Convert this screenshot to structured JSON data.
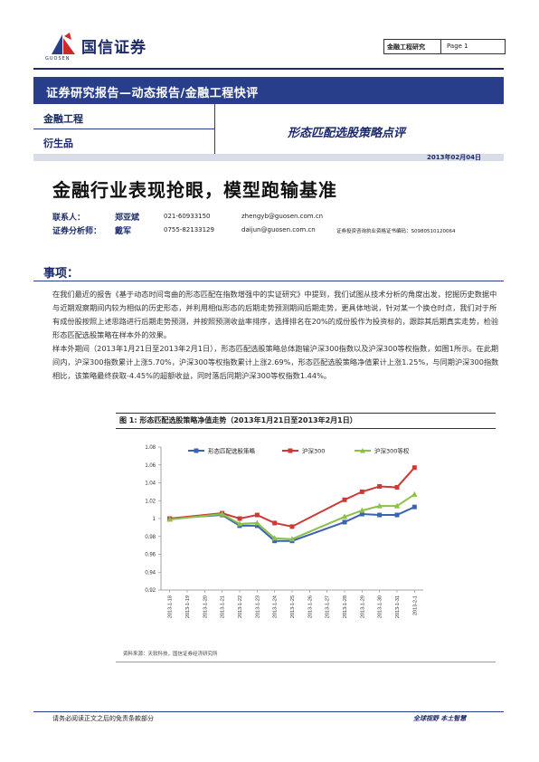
{
  "header": {
    "logo_cn": "国信证券",
    "logo_en": "GUOSEN",
    "category": "金融工程研究",
    "page_label": "Page 1"
  },
  "banner": {
    "title": "证券研究报告—动态报告/金融工程快评"
  },
  "tags": [
    "金融工程",
    "衍生品"
  ],
  "subtitle": "形态匹配选股策略点评",
  "date": "2013年02月04日",
  "main_title": "金融行业表现抢眼，模型跑输基准",
  "contacts": [
    {
      "role": "联系人：",
      "name": "郑亚斌",
      "phone": "021-60933150",
      "email": "zhengyb@guosen.com.cn",
      "cert": ""
    },
    {
      "role": "证券分析师：",
      "name": "戴军",
      "phone": "0755-82133129",
      "email": "daijun@guosen.com.cn",
      "cert": "证券投资咨询执业资格证书编码：S0980510120064"
    }
  ],
  "section_title": "事项：",
  "paragraphs": [
    "在我们最近的报告《基于动态时间弯曲的形态匹配在指数增强中的实证研究》中提到，我们试图从技术分析的角度出发，挖掘历史数据中与近期观察期间内较为相似的历史形态，并利用相似形态的后期走势预测期间后期走势，更具体地说，针对某一个换仓时点，我们对于所有成份股按照上述思路进行后期走势预测，并按照预测收益率排序，选择排名在20%的成份股作为投资标的，跟踪其后期真实走势，检验形态匹配选股策略在样本外的效果。",
    "样本外期间（2013年1月21日至2013年2月1日），形态匹配选股策略总体跑输沪深300指数以及沪深300等权指数，如图1所示。在此期间内，沪深300指数累计上涨5.70%，沪深300等权指数累计上涨2.69%，形态匹配选股策略净值累计上涨1.25%，与同期沪深300指数相比，该策略最终获取-4.45%的超额收益，同时落后同期沪深300等权指数1.44%。"
  ],
  "figure": {
    "title_prefix": "图 1:",
    "title": "形态匹配选股策略净值走势（2013年1月21日至2013年2月1日）",
    "source": "资料来源：天软科技，国信证券经济研究所"
  },
  "footer": {
    "left": "请务必阅读正文之后的免责条款部分",
    "right": "全球视野  本土智慧"
  },
  "chart_data": {
    "type": "line",
    "categories": [
      "2013-1-18",
      "2013-1-19",
      "2013-1-20",
      "2013-1-21",
      "2013-1-22",
      "2013-1-23",
      "2013-1-24",
      "2013-1-25",
      "2013-1-26",
      "2013-1-27",
      "2013-1-28",
      "2013-1-29",
      "2013-1-30",
      "2013-1-31",
      "2013-2-1"
    ],
    "ylim": [
      0.92,
      1.08
    ],
    "yticks": [
      0.92,
      0.94,
      0.96,
      0.98,
      1,
      1.02,
      1.04,
      1.06,
      1.08
    ],
    "legend_position": "top",
    "grid": false,
    "series": [
      {
        "name": "形态匹配选股策略",
        "color": "#3a64b0",
        "marker": "square",
        "points": [
          [
            0,
            1.0
          ],
          [
            3,
            1.004
          ],
          [
            4,
            0.992
          ],
          [
            5,
            0.992
          ],
          [
            6,
            0.975
          ],
          [
            7,
            0.975
          ],
          [
            10,
            0.996
          ],
          [
            11,
            1.005
          ],
          [
            12,
            1.004
          ],
          [
            13,
            1.004
          ],
          [
            14,
            1.013
          ]
        ]
      },
      {
        "name": "沪深300",
        "color": "#cc3a36",
        "marker": "square",
        "points": [
          [
            0,
            1.0
          ],
          [
            3,
            1.006
          ],
          [
            4,
            1.0
          ],
          [
            5,
            1.004
          ],
          [
            6,
            0.995
          ],
          [
            7,
            0.991
          ],
          [
            10,
            1.021
          ],
          [
            11,
            1.03
          ],
          [
            12,
            1.036
          ],
          [
            13,
            1.035
          ],
          [
            14,
            1.057
          ]
        ]
      },
      {
        "name": "沪深300等权",
        "color": "#8cc04a",
        "marker": "triangle",
        "points": [
          [
            0,
            0.999
          ],
          [
            3,
            1.005
          ],
          [
            4,
            0.994
          ],
          [
            5,
            0.995
          ],
          [
            6,
            0.978
          ],
          [
            7,
            0.977
          ],
          [
            10,
            1.002
          ],
          [
            11,
            1.009
          ],
          [
            12,
            1.014
          ],
          [
            13,
            1.014
          ],
          [
            14,
            1.027
          ]
        ]
      }
    ]
  }
}
